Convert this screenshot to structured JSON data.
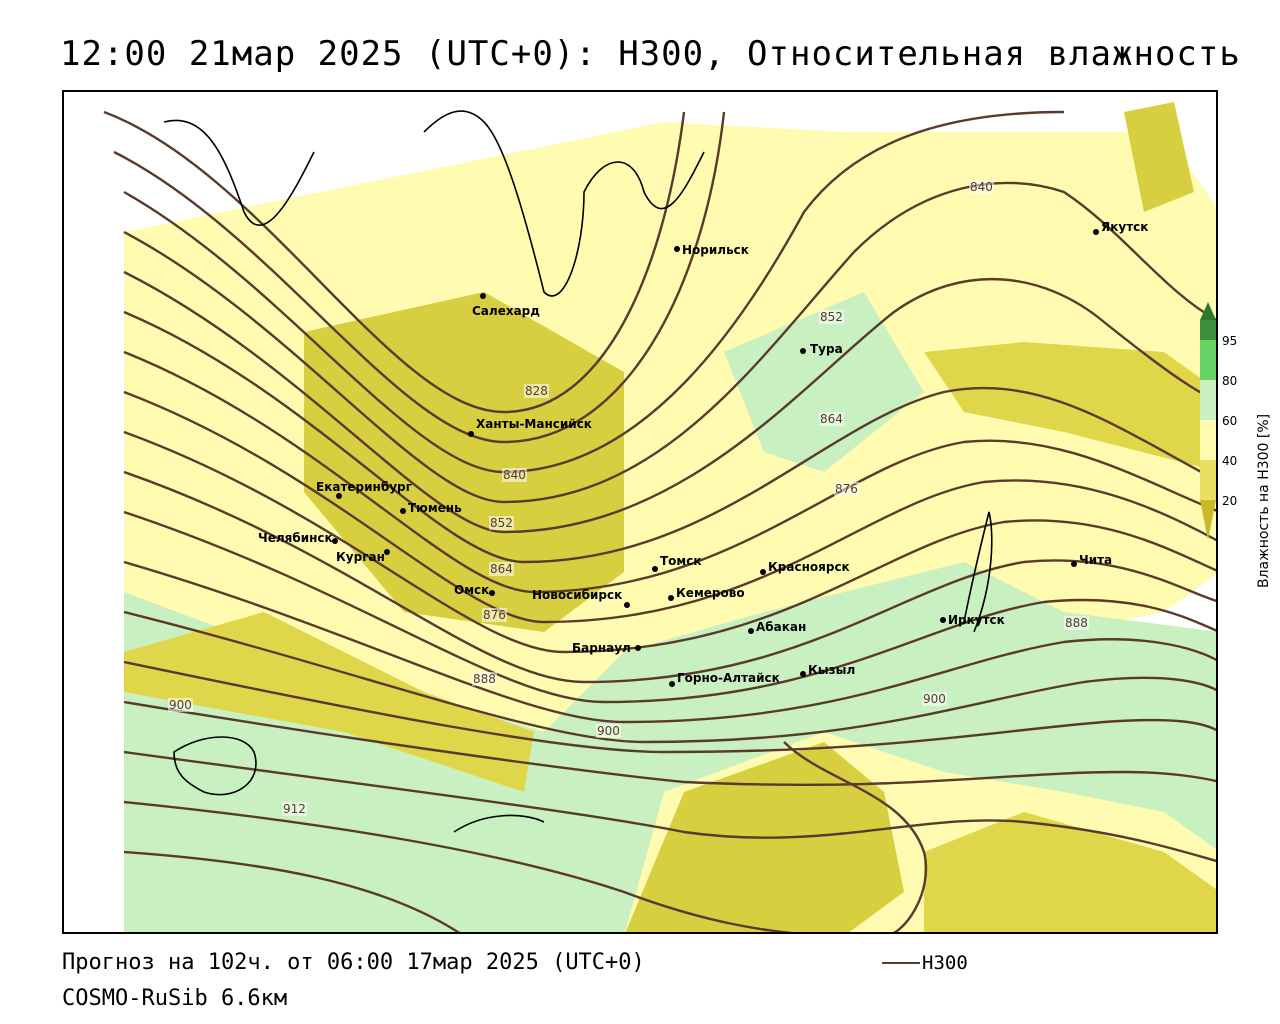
{
  "title": "12:00 21мар 2025 (UTC+0): H300, Относительная влажность",
  "footer": {
    "forecast": "Прогноз на 102ч. от 06:00 17мар 2025 (UTC+0)",
    "model": "COSMO-RuSib 6.6км",
    "legend_h300": "H300"
  },
  "colorbar": {
    "title": "Влажность на H300 [%]",
    "ticks": [
      "95",
      "80",
      "60",
      "40",
      "20"
    ],
    "colors": {
      "95": "#3a8f3a",
      "80": "#66d466",
      "60": "#c8f0c0",
      "40": "#fffbb0",
      "20": "#e8e060",
      "dry": "#c8b82a"
    }
  },
  "contour_color": "#5a3a2c",
  "contour_labels": [
    "840",
    "852",
    "864",
    "876",
    "828",
    "840",
    "852",
    "864",
    "876",
    "888",
    "900",
    "900",
    "912",
    "888",
    "900"
  ],
  "cities": [
    {
      "name": "Якутск"
    },
    {
      "name": "Норильск"
    },
    {
      "name": "Салехард"
    },
    {
      "name": "Тура"
    },
    {
      "name": "Ханты-Мансийск"
    },
    {
      "name": "Екатеринбург"
    },
    {
      "name": "Тюмень"
    },
    {
      "name": "Челябинск"
    },
    {
      "name": "Курган"
    },
    {
      "name": "Омск"
    },
    {
      "name": "Томск"
    },
    {
      "name": "Красноярск"
    },
    {
      "name": "Новосибирск"
    },
    {
      "name": "Кемерово"
    },
    {
      "name": "Абакан"
    },
    {
      "name": "Барнаул"
    },
    {
      "name": "Кызыл"
    },
    {
      "name": "Горно-Алтайск"
    },
    {
      "name": "Иркутск"
    },
    {
      "name": "Чита"
    }
  ]
}
